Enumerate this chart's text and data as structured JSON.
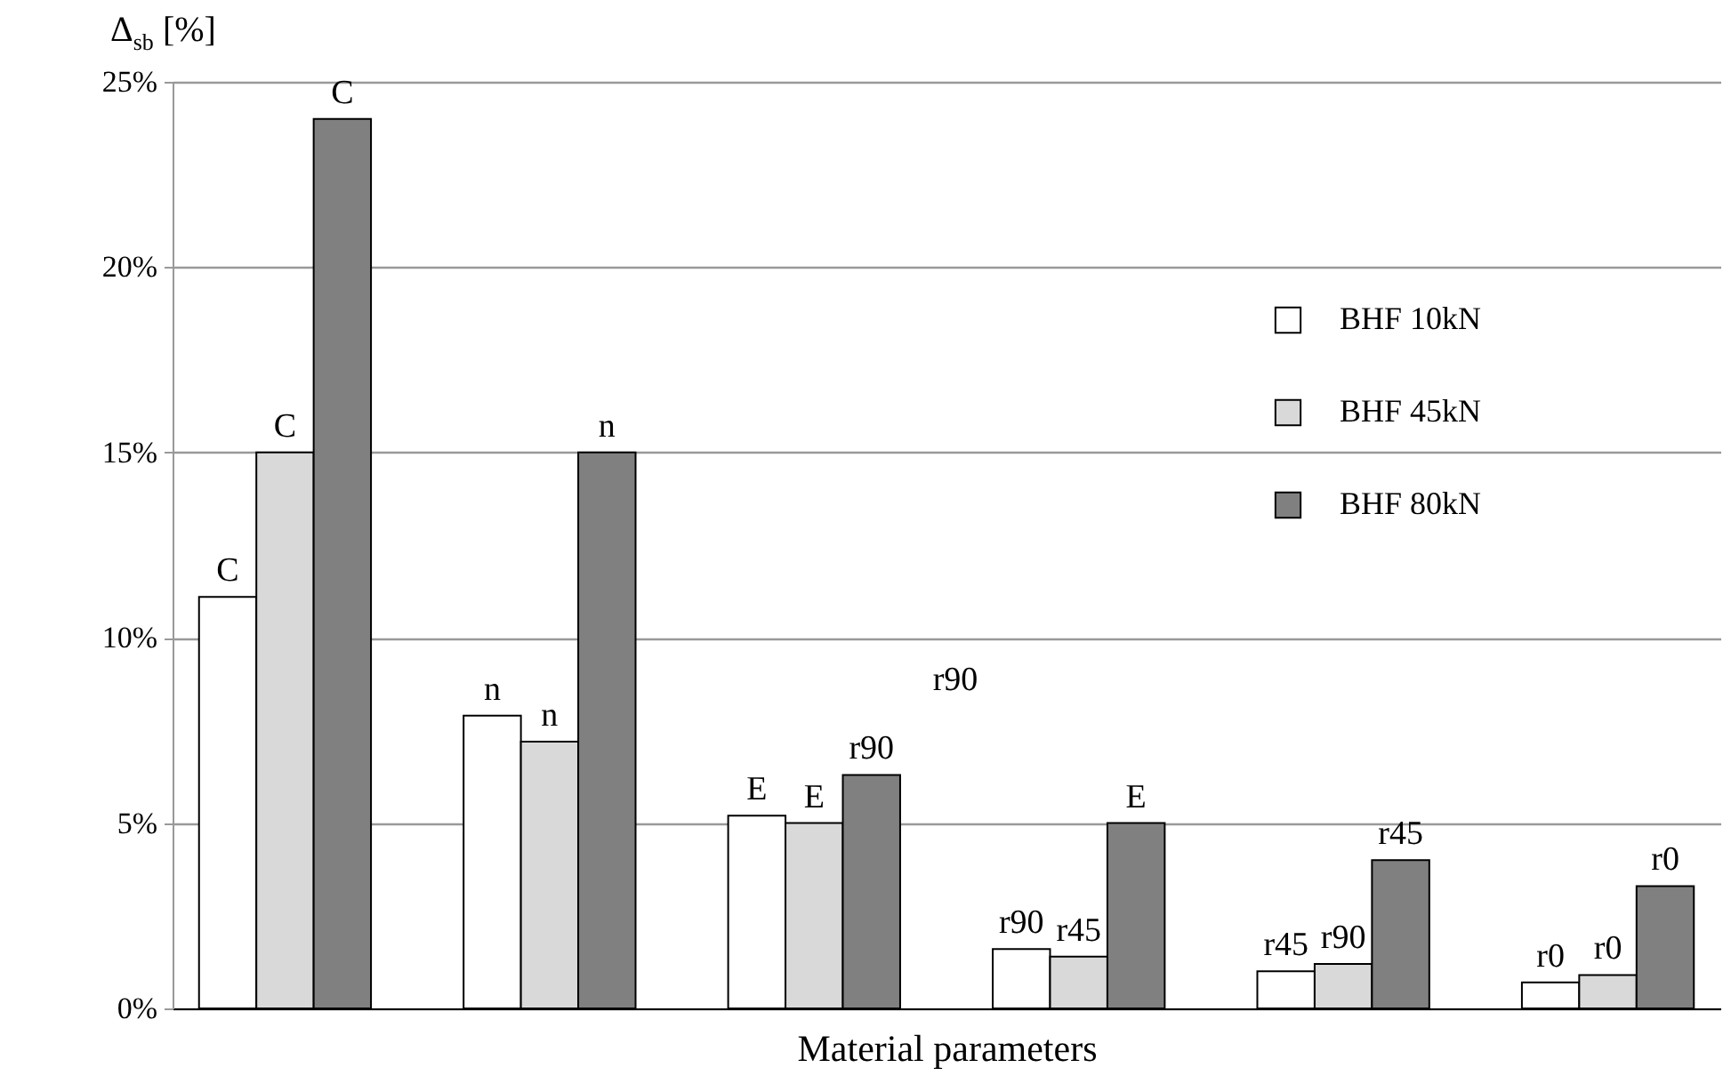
{
  "chart_data": {
    "type": "bar",
    "categories": [
      null,
      null,
      null,
      null,
      null,
      null
    ],
    "xlabel": "Material parameters",
    "ylabel": "Δ$_{sb}$ [%]",
    "ylim": [
      0,
      25
    ],
    "yticks": [
      {
        "value": 0,
        "label": "0%"
      },
      {
        "value": 5,
        "label": "5%"
      },
      {
        "value": 10,
        "label": "10%"
      },
      {
        "value": 15,
        "label": "15%"
      },
      {
        "value": 20,
        "label": "20%"
      },
      {
        "value": 25,
        "label": "25%"
      }
    ],
    "grid": "y",
    "legend": "top right",
    "series": [
      {
        "name": "BHF 10kN",
        "color": "#ffffff",
        "values": [
          11.1,
          7.9,
          5.2,
          1.6,
          1.0,
          0.7
        ],
        "value_labels": [
          "C",
          "n",
          "E",
          "r90",
          "r45",
          "r0"
        ]
      },
      {
        "name": "BHF 45kN",
        "color": "#d9d9d9",
        "values": [
          15.0,
          7.2,
          5.0,
          1.4,
          1.2,
          0.9
        ],
        "value_labels": [
          "C",
          "n",
          "E",
          "r45",
          "r90",
          "r0"
        ]
      },
      {
        "name": "BHF 80kN",
        "color": "#808080",
        "values": [
          24.0,
          15.0,
          6.3,
          5.0,
          4.0,
          3.3
        ],
        "value_labels": [
          "C",
          "n",
          "r90",
          "E",
          "r45",
          "r0"
        ]
      }
    ],
    "annotations": [
      "r90"
    ]
  }
}
